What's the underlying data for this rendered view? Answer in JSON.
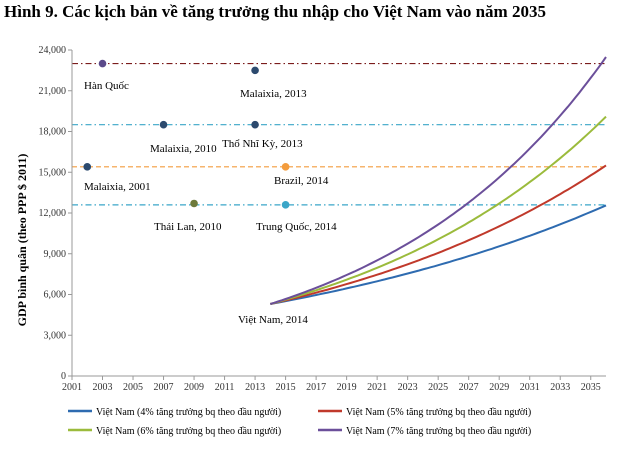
{
  "figure_title": "Hình 9. Các kịch bản về tăng trưởng thu nhập cho Việt Nam vào năm 2035",
  "chart_data": {
    "type": "line",
    "ylabel": "GDP bình quân (theo PPP $ 2011)",
    "xlabel": "",
    "ylim": [
      0,
      24000
    ],
    "xlim": [
      2001,
      2036
    ],
    "y_ticks": [
      0,
      3000,
      6000,
      9000,
      12000,
      15000,
      18000,
      21000,
      24000
    ],
    "y_tick_labels": [
      "0",
      "3,000",
      "6,000",
      "9,000",
      "12,000",
      "15,000",
      "18,000",
      "21,000",
      "24,000"
    ],
    "x_ticks": [
      2001,
      2003,
      2005,
      2007,
      2009,
      2011,
      2013,
      2015,
      2017,
      2019,
      2021,
      2023,
      2025,
      2027,
      2029,
      2031,
      2033,
      2035
    ],
    "x_tick_labels": [
      "2001",
      "2003",
      "2005",
      "2007",
      "2009",
      "2011",
      "2013",
      "2015",
      "2017",
      "2019",
      "2021",
      "2023",
      "2025",
      "2027",
      "2029",
      "2031",
      "2033",
      "2035"
    ],
    "grid": false,
    "legend_position": "bottom",
    "series": [
      {
        "name": "Việt Nam (4% tăng trưởng bq theo đầu người)",
        "color": "#2e6bb0",
        "start_year": 2014,
        "start_value": 5300,
        "growth": 0.04,
        "end_year": 2036
      },
      {
        "name": "Việt Nam (5% tăng trưởng bq theo đầu người)",
        "color": "#c0392b",
        "start_year": 2014,
        "start_value": 5300,
        "growth": 0.05,
        "end_year": 2036
      },
      {
        "name": "Việt Nam (6% tăng trưởng bq theo đầu người)",
        "color": "#9bbb3c",
        "start_year": 2014,
        "start_value": 5300,
        "growth": 0.06,
        "end_year": 2036
      },
      {
        "name": "Việt Nam (7% tăng trưởng bq theo đầu người)",
        "color": "#6b4f9a",
        "start_year": 2014,
        "start_value": 5300,
        "growth": 0.07,
        "end_year": 2036
      }
    ],
    "reference_lines": [
      {
        "y": 23000,
        "color": "#7b1c1c",
        "dash": "dash-dot"
      },
      {
        "y": 18500,
        "color": "#3aa6c8",
        "dash": "dash-dot"
      },
      {
        "y": 15400,
        "color": "#f39c3d",
        "dash": "dash"
      },
      {
        "y": 12600,
        "color": "#3aa6c8",
        "dash": "dash-dot"
      }
    ],
    "points": [
      {
        "label": "Hàn Quốc",
        "x": 2003,
        "y": 23000,
        "color": "#5b4a8a"
      },
      {
        "label": "Malaixia, 2013",
        "x": 2013,
        "y": 22500,
        "color": "#2c4a6e"
      },
      {
        "label": "Malaixia, 2010",
        "x": 2007,
        "y": 18500,
        "color": "#2c4a6e"
      },
      {
        "label": "Thổ Nhĩ Kỳ, 2013",
        "x": 2013,
        "y": 18500,
        "color": "#2c4a6e"
      },
      {
        "label": "Malaixia, 2001",
        "x": 2002,
        "y": 15400,
        "color": "#2c4a6e"
      },
      {
        "label": "Brazil, 2014",
        "x": 2015,
        "y": 15400,
        "color": "#f39c3d"
      },
      {
        "label": "Thái Lan, 2010",
        "x": 2009,
        "y": 12700,
        "color": "#6e7a3a"
      },
      {
        "label": "Trung Quốc, 2014",
        "x": 2015,
        "y": 12600,
        "color": "#3aa6c8"
      }
    ],
    "annotation_vietnam": "Việt Nam, 2014"
  }
}
